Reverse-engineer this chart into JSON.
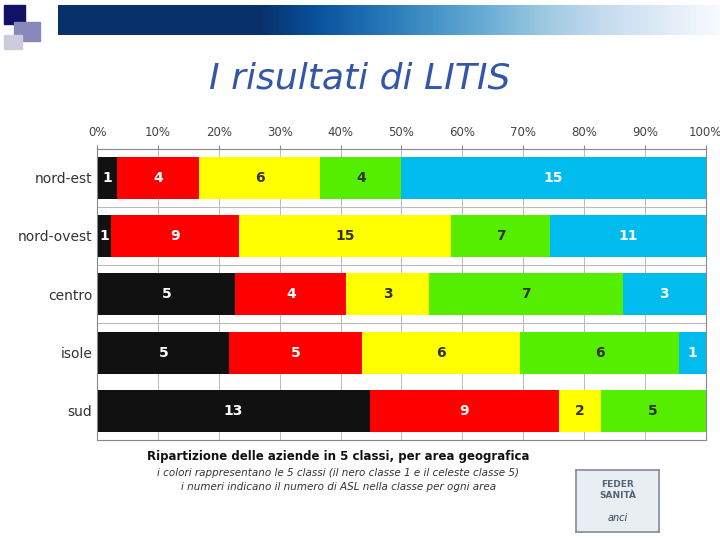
{
  "title": "I risultati di LITIS",
  "title_color": "#3355aa",
  "title_fontsize": 26,
  "categories": [
    "nord-est",
    "nord-ovest",
    "centro",
    "isole",
    "sud"
  ],
  "class_colors": [
    "#111111",
    "#ff0000",
    "#ffff00",
    "#55ee00",
    "#00bbee"
  ],
  "values": [
    [
      1,
      4,
      6,
      4,
      15
    ],
    [
      1,
      9,
      15,
      7,
      11
    ],
    [
      5,
      4,
      3,
      7,
      3
    ],
    [
      5,
      5,
      6,
      6,
      1
    ],
    [
      13,
      9,
      2,
      5,
      0
    ]
  ],
  "caption_line1": "Ripartizione delle aziende in 5 classi, per area geografica",
  "caption_line2": "i colori rappresentano le 5 classi (il nero classe 1 e il celeste classe 5)",
  "caption_line3": "i numeri indicano il numero di ASL nella classe per ogni area",
  "bg_color": "#ffffff",
  "chart_bg": "#ffffff",
  "border_color": "#888888",
  "tick_label_color": "#444444",
  "row_label_color": "#333333",
  "label_colors_white": [
    "#111111",
    "#ff0000",
    "#00bbee"
  ],
  "label_colors_dark": [
    "#ffff00",
    "#55ee00"
  ]
}
